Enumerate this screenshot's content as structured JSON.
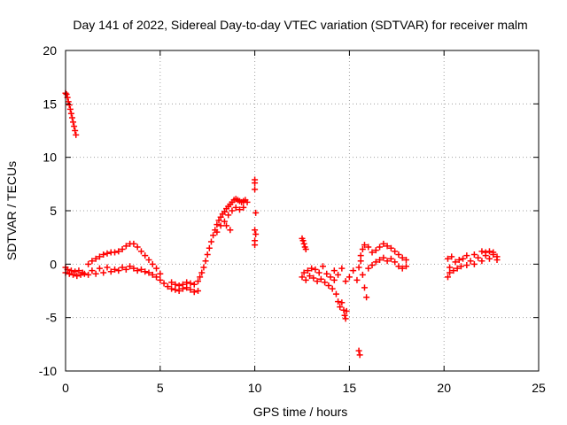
{
  "chart_data": {
    "type": "scatter",
    "title": "Day 141 of 2022, Sidereal Day-to-day VTEC variation (SDTVAR) for receiver malm",
    "xlabel": "GPS time / hours",
    "ylabel": "SDTVAR / TECUs",
    "xlim": [
      0,
      25
    ],
    "ylim": [
      -10,
      20
    ],
    "x_ticks": [
      0,
      5,
      10,
      15,
      20,
      25
    ],
    "y_ticks": [
      -10,
      -5,
      0,
      5,
      10,
      15,
      20
    ],
    "x_tick_labels": [
      "0",
      "5",
      "10",
      "15",
      "20",
      "25"
    ],
    "y_tick_labels": [
      "-10",
      "-5",
      "0",
      "5",
      "10",
      "15",
      "20"
    ],
    "grid": true,
    "marker": "+",
    "colors": {
      "series": "#ff0000",
      "grid": "#a0a0a0",
      "axes": "#000000"
    },
    "series": [
      {
        "name": "SDTVAR",
        "points": [
          [
            0.0,
            16.0
          ],
          [
            0.05,
            15.9
          ],
          [
            0.1,
            15.6
          ],
          [
            0.15,
            15.2
          ],
          [
            0.2,
            14.9
          ],
          [
            0.25,
            14.5
          ],
          [
            0.3,
            14.1
          ],
          [
            0.35,
            13.7
          ],
          [
            0.4,
            13.3
          ],
          [
            0.45,
            12.9
          ],
          [
            0.5,
            12.5
          ],
          [
            0.55,
            12.1
          ],
          [
            0.0,
            -0.3
          ],
          [
            0.0,
            -0.8
          ],
          [
            0.1,
            -0.5
          ],
          [
            0.2,
            -0.9
          ],
          [
            0.3,
            -0.6
          ],
          [
            0.4,
            -1.0
          ],
          [
            0.5,
            -0.7
          ],
          [
            0.6,
            -1.1
          ],
          [
            0.7,
            -0.6
          ],
          [
            0.8,
            -1.0
          ],
          [
            0.9,
            -0.8
          ],
          [
            1.0,
            -0.9
          ],
          [
            1.2,
            -1.0
          ],
          [
            1.4,
            -0.6
          ],
          [
            1.6,
            -0.9
          ],
          [
            1.8,
            -0.4
          ],
          [
            2.0,
            -0.8
          ],
          [
            2.2,
            -0.3
          ],
          [
            2.4,
            -0.7
          ],
          [
            2.6,
            -0.5
          ],
          [
            2.8,
            -0.6
          ],
          [
            3.0,
            -0.3
          ],
          [
            3.2,
            -0.5
          ],
          [
            3.4,
            -0.2
          ],
          [
            3.6,
            -0.4
          ],
          [
            3.8,
            -0.6
          ],
          [
            4.0,
            -0.5
          ],
          [
            4.2,
            -0.7
          ],
          [
            1.2,
            0.0
          ],
          [
            1.4,
            0.3
          ],
          [
            1.6,
            0.5
          ],
          [
            1.8,
            0.7
          ],
          [
            2.0,
            0.9
          ],
          [
            2.2,
            1.0
          ],
          [
            2.4,
            1.1
          ],
          [
            2.6,
            1.1
          ],
          [
            2.8,
            1.2
          ],
          [
            3.0,
            1.4
          ],
          [
            3.2,
            1.7
          ],
          [
            3.4,
            1.9
          ],
          [
            3.6,
            1.9
          ],
          [
            3.8,
            1.6
          ],
          [
            4.0,
            1.2
          ],
          [
            4.2,
            0.8
          ],
          [
            4.4,
            0.4
          ],
          [
            4.6,
            0.0
          ],
          [
            4.8,
            -0.4
          ],
          [
            5.0,
            -0.9
          ],
          [
            4.4,
            -0.8
          ],
          [
            4.6,
            -1.0
          ],
          [
            4.8,
            -1.2
          ],
          [
            5.0,
            -1.5
          ],
          [
            5.2,
            -1.8
          ],
          [
            5.4,
            -2.1
          ],
          [
            5.6,
            -2.3
          ],
          [
            5.8,
            -2.4
          ],
          [
            6.0,
            -2.5
          ],
          [
            6.2,
            -2.3
          ],
          [
            6.4,
            -2.2
          ],
          [
            6.6,
            -2.4
          ],
          [
            6.8,
            -2.6
          ],
          [
            7.0,
            -2.5
          ],
          [
            5.6,
            -1.7
          ],
          [
            5.8,
            -1.9
          ],
          [
            6.0,
            -2.0
          ],
          [
            6.2,
            -1.9
          ],
          [
            6.4,
            -1.7
          ],
          [
            6.6,
            -1.8
          ],
          [
            6.8,
            -1.9
          ],
          [
            7.0,
            -1.6
          ],
          [
            7.1,
            -1.2
          ],
          [
            7.2,
            -0.8
          ],
          [
            7.3,
            -0.3
          ],
          [
            7.4,
            0.3
          ],
          [
            7.5,
            0.9
          ],
          [
            7.6,
            1.5
          ],
          [
            7.7,
            2.1
          ],
          [
            7.8,
            2.7
          ],
          [
            7.9,
            3.2
          ],
          [
            8.0,
            3.7
          ],
          [
            8.1,
            4.1
          ],
          [
            8.2,
            4.4
          ],
          [
            8.3,
            4.7
          ],
          [
            8.4,
            4.9
          ],
          [
            8.5,
            5.2
          ],
          [
            8.6,
            5.4
          ],
          [
            8.7,
            5.6
          ],
          [
            8.8,
            5.8
          ],
          [
            8.9,
            6.0
          ],
          [
            9.0,
            6.1
          ],
          [
            9.1,
            6.0
          ],
          [
            9.2,
            5.9
          ],
          [
            9.3,
            5.8
          ],
          [
            9.4,
            5.9
          ],
          [
            9.5,
            6.0
          ],
          [
            9.6,
            5.8
          ],
          [
            8.0,
            3.0
          ],
          [
            8.2,
            3.6
          ],
          [
            8.4,
            4.0
          ],
          [
            8.6,
            4.6
          ],
          [
            8.8,
            5.0
          ],
          [
            9.0,
            5.3
          ],
          [
            9.2,
            5.1
          ],
          [
            9.4,
            5.3
          ],
          [
            8.5,
            3.6
          ],
          [
            8.7,
            3.2
          ],
          [
            10.0,
            7.9
          ],
          [
            10.0,
            7.6
          ],
          [
            10.0,
            7.0
          ],
          [
            10.05,
            4.8
          ],
          [
            10.0,
            3.2
          ],
          [
            10.05,
            2.8
          ],
          [
            10.0,
            2.2
          ],
          [
            10.0,
            1.8
          ],
          [
            12.5,
            2.4
          ],
          [
            12.55,
            2.2
          ],
          [
            12.6,
            1.9
          ],
          [
            12.65,
            1.6
          ],
          [
            12.7,
            1.4
          ],
          [
            12.5,
            -1.2
          ],
          [
            12.6,
            -0.8
          ],
          [
            12.7,
            -1.5
          ],
          [
            12.8,
            -0.6
          ],
          [
            12.9,
            -1.1
          ],
          [
            13.0,
            -0.4
          ],
          [
            13.1,
            -1.3
          ],
          [
            13.2,
            -0.5
          ],
          [
            13.3,
            -1.6
          ],
          [
            13.4,
            -0.8
          ],
          [
            13.5,
            -1.4
          ],
          [
            13.6,
            -0.2
          ],
          [
            13.7,
            -1.7
          ],
          [
            13.8,
            -0.9
          ],
          [
            13.9,
            -2.0
          ],
          [
            14.0,
            -1.2
          ],
          [
            14.1,
            -2.3
          ],
          [
            14.2,
            -1.5
          ],
          [
            14.3,
            -2.8
          ],
          [
            14.4,
            -3.5
          ],
          [
            14.5,
            -4.0
          ],
          [
            14.6,
            -3.6
          ],
          [
            14.7,
            -4.3
          ],
          [
            14.75,
            -4.8
          ],
          [
            14.8,
            -5.1
          ],
          [
            14.85,
            -4.4
          ],
          [
            14.2,
            -0.6
          ],
          [
            14.4,
            -1.0
          ],
          [
            14.6,
            -0.4
          ],
          [
            14.8,
            -1.6
          ],
          [
            15.0,
            -1.2
          ],
          [
            15.2,
            -0.6
          ],
          [
            15.4,
            -1.5
          ],
          [
            15.5,
            -0.3
          ],
          [
            15.6,
            0.3
          ],
          [
            15.7,
            -1.0
          ],
          [
            15.8,
            -2.2
          ],
          [
            15.9,
            -3.1
          ],
          [
            15.6,
            0.8
          ],
          [
            15.7,
            1.4
          ],
          [
            15.8,
            1.8
          ],
          [
            16.0,
            1.6
          ],
          [
            16.2,
            1.1
          ],
          [
            16.4,
            1.3
          ],
          [
            16.6,
            1.6
          ],
          [
            16.8,
            1.9
          ],
          [
            17.0,
            1.7
          ],
          [
            17.2,
            1.5
          ],
          [
            17.4,
            1.2
          ],
          [
            17.6,
            0.9
          ],
          [
            17.8,
            0.6
          ],
          [
            18.0,
            0.4
          ],
          [
            16.0,
            -0.4
          ],
          [
            16.2,
            -0.1
          ],
          [
            16.4,
            0.2
          ],
          [
            16.6,
            0.4
          ],
          [
            16.8,
            0.6
          ],
          [
            17.0,
            0.3
          ],
          [
            17.2,
            0.5
          ],
          [
            17.4,
            0.2
          ],
          [
            17.6,
            -0.2
          ],
          [
            17.8,
            -0.4
          ],
          [
            18.0,
            -0.2
          ],
          [
            15.5,
            -8.1
          ],
          [
            15.55,
            -8.5
          ],
          [
            20.2,
            0.5
          ],
          [
            20.3,
            -0.3
          ],
          [
            20.4,
            0.7
          ],
          [
            20.5,
            -0.6
          ],
          [
            20.6,
            0.2
          ],
          [
            20.7,
            -0.4
          ],
          [
            20.8,
            0.4
          ],
          [
            20.9,
            -0.2
          ],
          [
            21.0,
            0.5
          ],
          [
            21.2,
            -0.1
          ],
          [
            21.4,
            0.3
          ],
          [
            21.6,
            0.0
          ],
          [
            21.8,
            0.6
          ],
          [
            22.0,
            0.3
          ],
          [
            22.2,
            0.8
          ],
          [
            22.4,
            0.5
          ],
          [
            22.6,
            0.9
          ],
          [
            22.8,
            0.4
          ],
          [
            20.2,
            -1.2
          ],
          [
            20.3,
            -0.8
          ],
          [
            21.2,
            0.8
          ],
          [
            21.6,
            0.9
          ],
          [
            22.0,
            1.2
          ],
          [
            22.2,
            1.1
          ],
          [
            22.4,
            1.2
          ],
          [
            22.6,
            1.1
          ],
          [
            22.8,
            0.7
          ]
        ]
      }
    ]
  }
}
